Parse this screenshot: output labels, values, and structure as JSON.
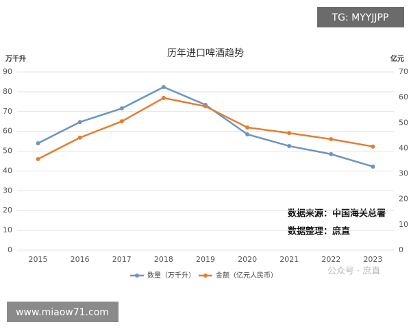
{
  "chart_data": {
    "type": "line",
    "title": "历年进口啤酒趋势",
    "y_unit": "万千升",
    "y2_unit": "亿元",
    "categories": [
      "2015",
      "2016",
      "2017",
      "2018",
      "2019",
      "2020",
      "2021",
      "2022",
      "2023"
    ],
    "series": [
      {
        "name": "数量（万千升）",
        "color": "#6b95c2",
        "values": [
          54.0,
          64.7,
          71.6,
          82.4,
          73.4,
          58.5,
          52.6,
          48.5,
          42.2
        ]
      },
      {
        "name": "金额（亿元人民币）",
        "color": "#e47d32",
        "axis": "y2",
        "values": [
          35.8,
          44.2,
          50.6,
          59.8,
          56.5,
          48.2,
          46.0,
          43.6,
          40.7
        ]
      }
    ],
    "ylim": [
      0,
      90
    ],
    "yticks": [
      0,
      10,
      20,
      30,
      40,
      50,
      60,
      70,
      80,
      90
    ],
    "y2lim": [
      0,
      70
    ],
    "y2ticks": [
      0,
      10,
      20,
      30,
      40,
      50,
      60,
      70
    ],
    "grid": true,
    "annotations": [
      "数据来源：中国海关总署",
      "数据整理：庶直"
    ]
  },
  "overlays": {
    "badge": "TG: MYYJJPP",
    "website": "www.miaow71.com",
    "watermark": "公众号 · 庶直"
  }
}
